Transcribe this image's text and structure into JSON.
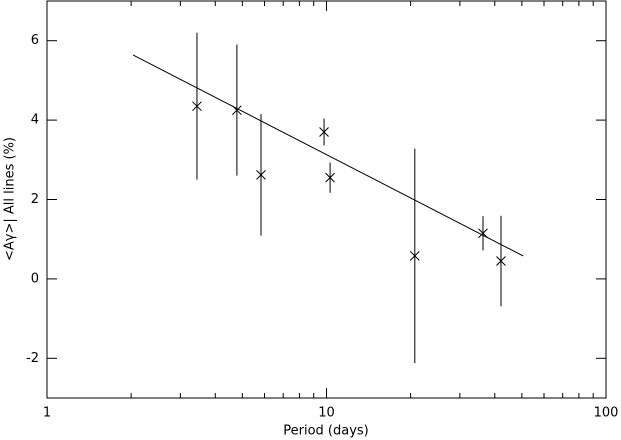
{
  "chart_data": {
    "type": "scatter",
    "xlabel": "Period (days)",
    "ylabel": "<Aγ>| All lines (%)",
    "xscale": "log",
    "xlim": [
      1,
      100
    ],
    "xticks": [
      1,
      10,
      100
    ],
    "xminorticks": [
      2,
      3,
      4,
      5,
      6,
      7,
      8,
      9,
      20,
      30,
      40,
      50,
      60,
      70,
      80,
      90
    ],
    "ylim": [
      -3,
      7
    ],
    "yticks": [
      -2,
      0,
      2,
      4,
      6
    ],
    "color": "#000000",
    "x": [
      3.44,
      4.78,
      5.83,
      9.8,
      10.3,
      20.7,
      36.3,
      42.1
    ],
    "values": [
      4.35,
      4.25,
      2.62,
      3.7,
      2.55,
      0.58,
      1.15,
      0.45
    ],
    "errors": [
      1.85,
      1.65,
      1.53,
      0.34,
      0.38,
      2.7,
      0.43,
      1.14
    ],
    "fit": {
      "x": [
        2.03,
        50.5
      ],
      "values": [
        5.64,
        0.58
      ]
    }
  }
}
